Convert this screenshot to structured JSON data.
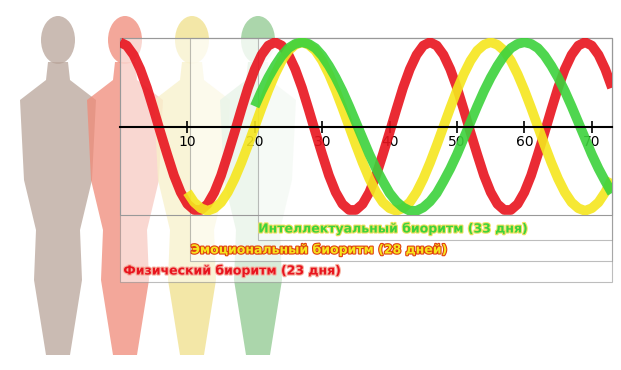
{
  "chart_data": {
    "type": "line",
    "xlim": [
      0,
      73
    ],
    "ylim": [
      -1.05,
      1.05
    ],
    "xticks": [
      10,
      20,
      30,
      40,
      50,
      60,
      70
    ],
    "tick_labels": "x",
    "series": [
      {
        "name": "Интеллектуальный биоритм (33 дня)",
        "color": "#3cd23c",
        "x": [
          20,
          21,
          22,
          23,
          24,
          25,
          26,
          27,
          28,
          29,
          30,
          31,
          32,
          33,
          34,
          35,
          36,
          37,
          38,
          39,
          40,
          41,
          42,
          43,
          44,
          45,
          46,
          47,
          48,
          49,
          50,
          51,
          52,
          53,
          54,
          55,
          56,
          57,
          58,
          59,
          60,
          61,
          62,
          63,
          64,
          65,
          66,
          67,
          68,
          69,
          70,
          71,
          72,
          73
        ],
        "values": [
          0.24,
          0.42,
          0.58,
          0.72,
          0.84,
          0.93,
          0.98,
          1.0,
          0.98,
          0.93,
          0.84,
          0.72,
          0.58,
          0.42,
          0.24,
          0.05,
          -0.14,
          -0.33,
          -0.5,
          -0.65,
          -0.79,
          -0.89,
          -0.96,
          -1.0,
          -1.0,
          -0.96,
          -0.89,
          -0.79,
          -0.65,
          -0.5,
          -0.33,
          -0.14,
          0.05,
          0.24,
          0.42,
          0.58,
          0.72,
          0.84,
          0.93,
          0.98,
          1.0,
          0.98,
          0.93,
          0.84,
          0.72,
          0.58,
          0.42,
          0.24,
          0.05,
          -0.14,
          -0.33,
          -0.5,
          -0.65,
          -0.79
        ]
      },
      {
        "name": "Эмоциональный биоритм (28 дней)",
        "color": "#f5e61e",
        "x": [
          10,
          11,
          12,
          13,
          14,
          15,
          16,
          17,
          18,
          19,
          20,
          21,
          22,
          23,
          24,
          25,
          26,
          27,
          28,
          29,
          30,
          31,
          32,
          33,
          34,
          35,
          36,
          37,
          38,
          39,
          40,
          41,
          42,
          43,
          44,
          45,
          46,
          47,
          48,
          49,
          50,
          51,
          52,
          53,
          54,
          55,
          56,
          57,
          58,
          59,
          60,
          61,
          62,
          63,
          64,
          65,
          66,
          67,
          68,
          69,
          70,
          71,
          72,
          73
        ],
        "values": [
          -0.78,
          -0.9,
          -0.97,
          -1.0,
          -0.97,
          -0.9,
          -0.78,
          -0.62,
          -0.43,
          -0.22,
          0.0,
          0.22,
          0.43,
          0.62,
          0.78,
          0.9,
          0.97,
          1.0,
          0.97,
          0.9,
          0.78,
          0.62,
          0.43,
          0.22,
          0.0,
          -0.22,
          -0.43,
          -0.62,
          -0.78,
          -0.9,
          -0.97,
          -1.0,
          -0.97,
          -0.9,
          -0.78,
          -0.62,
          -0.43,
          -0.22,
          0.0,
          0.22,
          0.43,
          0.62,
          0.78,
          0.9,
          0.97,
          1.0,
          0.97,
          0.9,
          0.78,
          0.62,
          0.43,
          0.22,
          0.0,
          -0.22,
          -0.43,
          -0.62,
          -0.78,
          -0.9,
          -0.97,
          -1.0,
          -0.97,
          -0.9,
          -0.78,
          -0.62
        ]
      },
      {
        "name": "Физический биоритм (23 дня)",
        "color": "#e8141e",
        "x": [
          0,
          1,
          2,
          3,
          4,
          5,
          6,
          7,
          8,
          9,
          10,
          11,
          12,
          13,
          14,
          15,
          16,
          17,
          18,
          19,
          20,
          21,
          22,
          23,
          24,
          25,
          26,
          27,
          28,
          29,
          30,
          31,
          32,
          33,
          34,
          35,
          36,
          37,
          38,
          39,
          40,
          41,
          42,
          43,
          44,
          45,
          46,
          47,
          48,
          49,
          50,
          51,
          52,
          53,
          54,
          55,
          56,
          57,
          58,
          59,
          60,
          61,
          62,
          63,
          64,
          65,
          66,
          67,
          68,
          69,
          70,
          71,
          72,
          73
        ],
        "values": [
          1.0,
          0.96,
          0.85,
          0.68,
          0.46,
          0.2,
          -0.07,
          -0.33,
          -0.58,
          -0.78,
          -0.92,
          -0.99,
          -0.99,
          -0.92,
          -0.78,
          -0.58,
          -0.33,
          -0.07,
          0.2,
          0.46,
          0.68,
          0.85,
          0.96,
          1.0,
          0.96,
          0.85,
          0.68,
          0.46,
          0.2,
          -0.07,
          -0.33,
          -0.58,
          -0.78,
          -0.92,
          -0.99,
          -0.99,
          -0.92,
          -0.78,
          -0.58,
          -0.33,
          -0.07,
          0.2,
          0.46,
          0.68,
          0.85,
          0.96,
          1.0,
          0.96,
          0.85,
          0.68,
          0.46,
          0.2,
          -0.07,
          -0.33,
          -0.58,
          -0.78,
          -0.92,
          -0.99,
          -0.99,
          -0.92,
          -0.78,
          -0.58,
          -0.33,
          -0.07,
          0.2,
          0.46,
          0.68,
          0.85,
          0.96,
          1.0,
          0.96,
          0.85,
          0.68,
          0.46
        ]
      }
    ]
  }
}
